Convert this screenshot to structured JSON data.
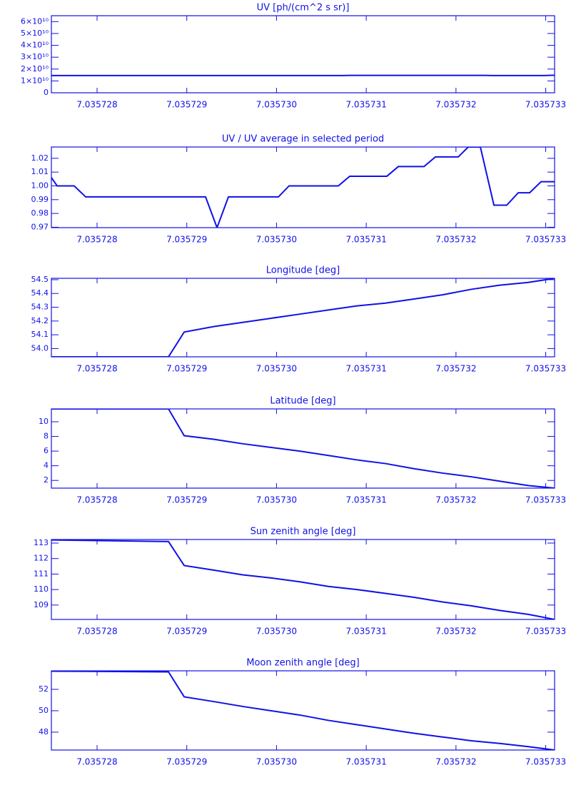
{
  "chart_data": [
    {
      "type": "line",
      "title": "UV [ph/(cm^2 s sr)]",
      "color": "#1010e8",
      "x": [
        7.035727491,
        7.035730737,
        7.035730816,
        7.035732328,
        7.035732407,
        7.035732964,
        7.035733099
      ],
      "values": [
        14500000000,
        14500000000,
        14700000000,
        14700000000,
        14500000000,
        14500000000,
        14800000000
      ],
      "xlim": [
        7.035727491,
        7.035733099
      ],
      "xticks": [
        7.035728,
        7.035729,
        {
          "value": 7.03573,
          "label": "7.035730"
        },
        7.035731,
        7.035732,
        7.035733
      ],
      "ylim": [
        0,
        65000000000
      ],
      "yticks": [
        0,
        {
          "value": 10000000000,
          "label": "1×10¹⁰"
        },
        {
          "value": 20000000000,
          "label": "2×10¹⁰"
        },
        {
          "value": 30000000000,
          "label": "3×10¹⁰"
        },
        {
          "value": 40000000000,
          "label": "4×10¹⁰"
        },
        {
          "value": 50000000000,
          "label": "5×10¹⁰"
        },
        {
          "value": 60000000000,
          "label": "6×10¹⁰"
        }
      ]
    },
    {
      "type": "line",
      "title": "UV / UV average in selected period",
      "color": "#1010e8",
      "x": [
        7.035727491,
        7.035727555,
        7.035727745,
        7.035727873,
        7.035729209,
        7.035729337,
        7.035729464,
        7.035730021,
        7.03573014,
        7.035730689,
        7.035730816,
        7.03573123,
        7.035731357,
        7.035731644,
        7.035731771,
        7.035732025,
        7.035732137,
        7.035732272,
        7.035732423,
        7.035732566,
        7.035732694,
        7.035732821,
        7.035732948,
        7.035733099
      ],
      "values": [
        1.006,
        1.0,
        1.0,
        0.992,
        0.992,
        0.9697,
        0.992,
        0.992,
        1.0,
        1.0,
        1.007,
        1.007,
        1.014,
        1.014,
        1.021,
        1.021,
        1.0282,
        1.0282,
        0.986,
        0.986,
        0.995,
        0.995,
        1.003,
        1.003
      ],
      "xlim": [
        7.035727491,
        7.035733099
      ],
      "xticks": [
        7.035728,
        7.035729,
        {
          "value": 7.03573,
          "label": "7.035730"
        },
        7.035731,
        7.035732,
        7.035733
      ],
      "ylim": [
        0.9697,
        1.0282
      ],
      "yticks": [
        0.97,
        0.98,
        0.99,
        {
          "value": 1,
          "label": "1.00"
        },
        1.01,
        1.02
      ]
    },
    {
      "type": "line",
      "title": "Longitude [deg]",
      "color": "#1010e8",
      "x": [
        7.035727491,
        7.035728796,
        7.035728971,
        7.035729305,
        7.035729623,
        7.035729941,
        7.035730259,
        7.035730578,
        7.035730896,
        7.035731214,
        7.035731532,
        7.03573185,
        7.035732169,
        7.035732487,
        7.035732805,
        7.035733099
      ],
      "values": [
        53.94,
        53.94,
        54.12,
        54.16,
        54.19,
        54.22,
        54.25,
        54.28,
        54.31,
        54.33,
        54.36,
        54.39,
        54.43,
        54.46,
        54.48,
        54.51
      ],
      "xlim": [
        7.035727491,
        7.035733099
      ],
      "xticks": [
        7.035728,
        7.035729,
        {
          "value": 7.03573,
          "label": "7.035730"
        },
        7.035731,
        7.035732,
        7.035733
      ],
      "ylim": [
        53.94,
        54.51
      ],
      "yticks": [
        {
          "value": 54,
          "label": "54.0"
        },
        54.1,
        54.2,
        54.3,
        54.4,
        54.5
      ]
    },
    {
      "type": "line",
      "title": "Latitude [deg]",
      "color": "#1010e8",
      "x": [
        7.035727491,
        7.035728796,
        7.035728971,
        7.035729305,
        7.035729623,
        7.035729941,
        7.035730259,
        7.035730578,
        7.035730896,
        7.035731214,
        7.035731532,
        7.03573185,
        7.035732169,
        7.035732487,
        7.035732805,
        7.035733099
      ],
      "values": [
        11.75,
        11.75,
        8.1,
        7.6,
        7.0,
        6.5,
        6.0,
        5.4,
        4.8,
        4.3,
        3.6,
        3.0,
        2.5,
        1.9,
        1.3,
        0.95
      ],
      "xlim": [
        7.035727491,
        7.035733099
      ],
      "xticks": [
        7.035728,
        7.035729,
        {
          "value": 7.03573,
          "label": "7.035730"
        },
        7.035731,
        7.035732,
        7.035733
      ],
      "ylim": [
        0.95,
        11.75
      ],
      "yticks": [
        2,
        4,
        6,
        8,
        10
      ]
    },
    {
      "type": "line",
      "title": "Sun zenith angle [deg]",
      "color": "#1010e8",
      "x": [
        7.035727491,
        7.035728796,
        7.035728971,
        7.035729305,
        7.035729623,
        7.035729941,
        7.035730259,
        7.035730578,
        7.035730896,
        7.035731214,
        7.035731532,
        7.03573185,
        7.035732169,
        7.035732487,
        7.035732805,
        7.035733099
      ],
      "values": [
        113.2,
        113.1,
        111.55,
        111.25,
        110.95,
        110.75,
        110.5,
        110.2,
        110.0,
        109.75,
        109.5,
        109.2,
        108.95,
        108.65,
        108.4,
        108.07
      ],
      "xlim": [
        7.035727491,
        7.035733099
      ],
      "xticks": [
        7.035728,
        7.035729,
        {
          "value": 7.03573,
          "label": "7.035730"
        },
        7.035731,
        7.035732,
        7.035733
      ],
      "ylim": [
        108.07,
        113.23
      ],
      "yticks": [
        109,
        110,
        111,
        112,
        113
      ]
    },
    {
      "type": "line",
      "title": "Moon zenith angle [deg]",
      "color": "#1010e8",
      "x": [
        7.035727491,
        7.035728796,
        7.035728971,
        7.035729305,
        7.035729623,
        7.035729941,
        7.035730259,
        7.035730578,
        7.035730896,
        7.035731214,
        7.035731532,
        7.03573185,
        7.035732169,
        7.035732487,
        7.035732805,
        7.035733099
      ],
      "values": [
        53.7,
        53.63,
        51.3,
        50.85,
        50.4,
        50.0,
        49.6,
        49.1,
        48.7,
        48.3,
        47.9,
        47.55,
        47.2,
        46.95,
        46.65,
        46.33
      ],
      "xlim": [
        7.035727491,
        7.035733099
      ],
      "xticks": [
        7.035728,
        7.035729,
        {
          "value": 7.03573,
          "label": "7.035730"
        },
        7.035731,
        7.035732,
        7.035733
      ],
      "ylim": [
        46.33,
        53.73
      ],
      "yticks": [
        48,
        50,
        52
      ]
    }
  ]
}
